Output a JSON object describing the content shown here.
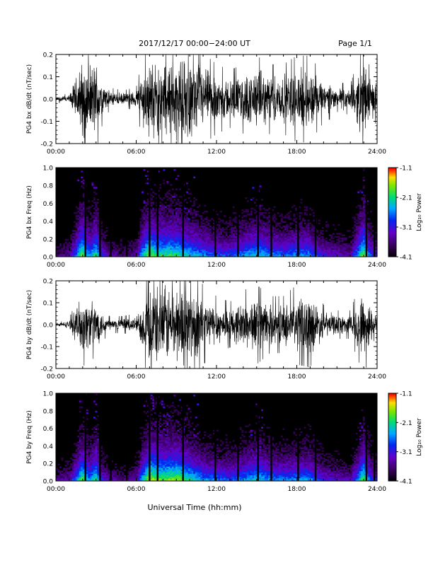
{
  "header": {
    "title": "2017/12/17  00:00−24:00 UT",
    "page": "Page 1/1"
  },
  "footer": {
    "xlabel": "Universal Time (hh:mm)"
  },
  "chart_data": [
    {
      "type": "line",
      "ylabel": "PG4 bx dB/dt (nT/sec)",
      "ylim": [
        -0.2,
        0.2
      ],
      "xlim_hours": [
        0,
        24
      ],
      "xticks": [
        "00:00",
        "06:00",
        "12:00",
        "18:00",
        "24:00"
      ],
      "yticks": [
        "-0.2",
        "-0.1",
        "0.0",
        "0.1",
        "0.2"
      ],
      "series": [
        {
          "x_hours": [
            0,
            1,
            2,
            2.5,
            3,
            3.5,
            4,
            5,
            6,
            6.5,
            7,
            7.5,
            8,
            9,
            10,
            11,
            12,
            13,
            14,
            15,
            16,
            17,
            18,
            19,
            20,
            21,
            22,
            23,
            23.5,
            24
          ],
          "amplitude": [
            0.01,
            0.02,
            0.2,
            0.16,
            0.2,
            0.08,
            0.04,
            0.03,
            0.04,
            0.15,
            0.2,
            0.18,
            0.2,
            0.2,
            0.2,
            0.16,
            0.12,
            0.1,
            0.12,
            0.15,
            0.12,
            0.12,
            0.15,
            0.15,
            0.08,
            0.06,
            0.05,
            0.2,
            0.1,
            0.08
          ]
        }
      ]
    },
    {
      "type": "heatmap",
      "ylabel": "PG4 bx Freq (Hz)",
      "ylim": [
        0,
        1.0
      ],
      "xlim_hours": [
        0,
        24
      ],
      "xticks": [
        "00:00",
        "06:00",
        "12:00",
        "18:00",
        "24:00"
      ],
      "yticks": [
        "0.0",
        "0.2",
        "0.4",
        "0.6",
        "0.8",
        "1.0"
      ],
      "colorbar": {
        "label": "Log₁₀ Power",
        "range": [
          -4.1,
          -1.1
        ],
        "ticks": [
          "-1.1",
          "-2.1",
          "-3.1",
          "-4.1"
        ]
      },
      "activity_hours": [
        0,
        1,
        2,
        2.5,
        3,
        3.5,
        4,
        5,
        6,
        6.5,
        7,
        7.5,
        8,
        9,
        10,
        11,
        12,
        13,
        14,
        15,
        16,
        17,
        18,
        19,
        20,
        21,
        22,
        23,
        23.5,
        24
      ],
      "activity_level": [
        0.2,
        0.25,
        0.9,
        0.6,
        0.8,
        0.4,
        0.3,
        0.2,
        0.3,
        0.7,
        0.9,
        0.8,
        0.8,
        0.8,
        0.7,
        0.6,
        0.5,
        0.5,
        0.6,
        0.7,
        0.6,
        0.55,
        0.6,
        0.6,
        0.4,
        0.35,
        0.3,
        0.9,
        0.5,
        0.4
      ],
      "gap_hours": [
        2.2,
        3.3,
        4.1,
        5.3,
        7.0,
        7.6,
        9.5,
        11.9,
        13.6,
        15.1,
        16.1,
        18.1,
        19.4,
        23.2,
        23.8
      ]
    },
    {
      "type": "line",
      "ylabel": "PG4 by dB/dt (nT/sec)",
      "ylim": [
        -0.2,
        0.2
      ],
      "xlim_hours": [
        0,
        24
      ],
      "xticks": [
        "00:00",
        "06:00",
        "12:00",
        "18:00",
        "24:00"
      ],
      "yticks": [
        "-0.2",
        "-0.1",
        "0.0",
        "0.1",
        "0.2"
      ],
      "series": [
        {
          "x_hours": [
            0,
            1,
            2,
            2.5,
            3,
            3.5,
            4,
            5,
            6,
            6.5,
            7,
            7.5,
            8,
            9,
            10,
            11,
            12,
            13,
            14,
            15,
            16,
            17,
            18,
            19,
            20,
            21,
            22,
            23,
            23.5,
            24
          ],
          "amplitude": [
            0.005,
            0.02,
            0.15,
            0.12,
            0.12,
            0.06,
            0.03,
            0.03,
            0.04,
            0.12,
            0.2,
            0.2,
            0.2,
            0.2,
            0.2,
            0.14,
            0.1,
            0.08,
            0.12,
            0.14,
            0.1,
            0.1,
            0.14,
            0.15,
            0.07,
            0.05,
            0.05,
            0.18,
            0.1,
            0.07
          ]
        }
      ]
    },
    {
      "type": "heatmap",
      "ylabel": "PG4 by Freq (Hz)",
      "ylim": [
        0,
        1.0
      ],
      "xlim_hours": [
        0,
        24
      ],
      "xticks": [
        "00:00",
        "06:00",
        "12:00",
        "18:00",
        "24:00"
      ],
      "yticks": [
        "0.0",
        "0.2",
        "0.4",
        "0.6",
        "0.8",
        "1.0"
      ],
      "colorbar": {
        "label": "Log₁₀ Power",
        "range": [
          -4.1,
          -1.1
        ],
        "ticks": [
          "-1.1",
          "-2.1",
          "-3.1",
          "-4.1"
        ]
      },
      "activity_hours": [
        0,
        1,
        2,
        2.5,
        3,
        3.5,
        4,
        5,
        6,
        6.5,
        7,
        7.5,
        8,
        9,
        10,
        11,
        12,
        13,
        14,
        15,
        16,
        17,
        18,
        19,
        20,
        21,
        22,
        23,
        23.5,
        24
      ],
      "activity_level": [
        0.25,
        0.3,
        0.85,
        0.6,
        0.8,
        0.4,
        0.3,
        0.2,
        0.3,
        0.7,
        0.95,
        0.9,
        0.85,
        0.9,
        0.75,
        0.6,
        0.55,
        0.5,
        0.6,
        0.7,
        0.6,
        0.55,
        0.6,
        0.6,
        0.4,
        0.35,
        0.3,
        0.85,
        0.5,
        0.4
      ],
      "gap_hours": [
        2.2,
        3.3,
        4.1,
        5.3,
        7.0,
        7.6,
        9.5,
        11.9,
        13.6,
        15.1,
        16.1,
        18.1,
        19.4,
        23.2,
        23.8
      ]
    }
  ]
}
